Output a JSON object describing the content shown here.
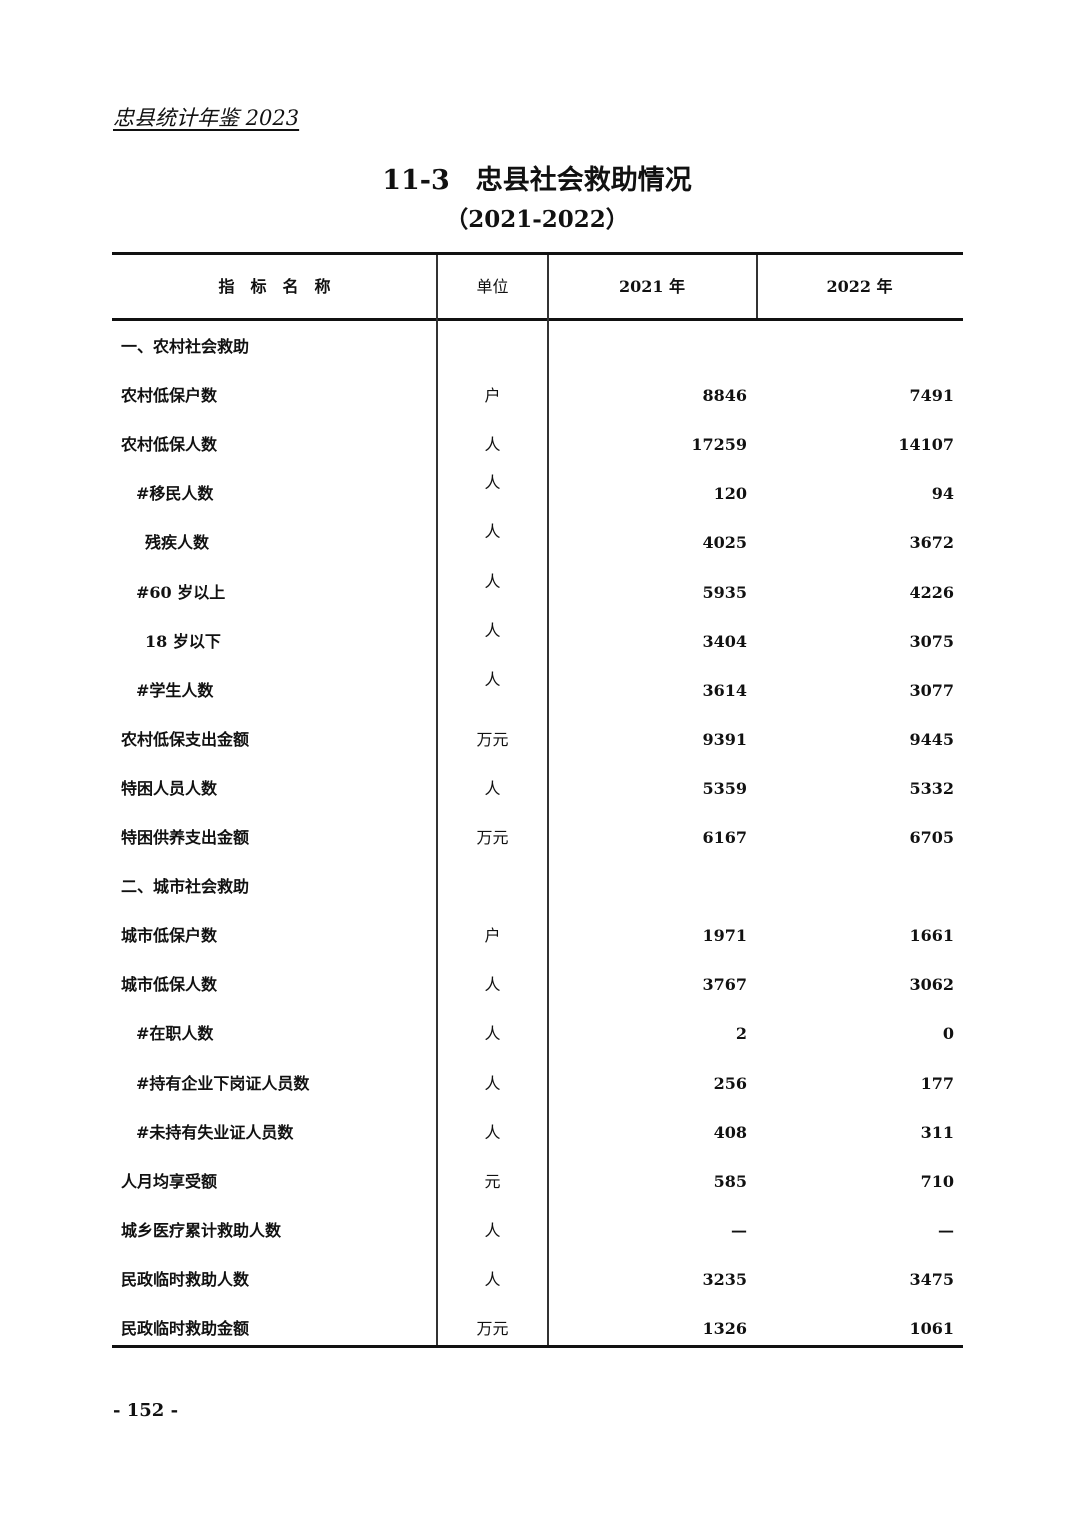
{
  "running_header": "忠县统计年鉴 2023",
  "title": {
    "number": "11-3",
    "text": "忠县社会救助情况"
  },
  "subtitle": "（2021-2022）",
  "columns": [
    "指　标　名　称",
    "单位",
    "2021 年",
    "2022 年"
  ],
  "rows": [
    {
      "name": "一、农村社会救助",
      "unit": "",
      "v2021": "",
      "v2022": "",
      "indent": 0
    },
    {
      "name": "农村低保户数",
      "unit": "户",
      "v2021": "8846",
      "v2022": "7491",
      "indent": 0
    },
    {
      "name": "农村低保人数",
      "unit": "人",
      "v2021": "17259",
      "v2022": "14107",
      "indent": 0
    },
    {
      "name": "#移民人数",
      "unit": "人",
      "v2021": "120",
      "v2022": "94",
      "indent": 1
    },
    {
      "name": "残疾人数",
      "unit": "人",
      "v2021": "4025",
      "v2022": "3672",
      "indent": 2
    },
    {
      "name": "#60 岁以上",
      "unit": "人",
      "v2021": "5935",
      "v2022": "4226",
      "indent": 1
    },
    {
      "name": "18 岁以下",
      "unit": "人",
      "v2021": "3404",
      "v2022": "3075",
      "indent": 2
    },
    {
      "name": "#学生人数",
      "unit": "人",
      "v2021": "3614",
      "v2022": "3077",
      "indent": 1
    },
    {
      "name": "农村低保支出金额",
      "unit": "万元",
      "v2021": "9391",
      "v2022": "9445",
      "indent": 0
    },
    {
      "name": "特困人员人数",
      "unit": "人",
      "v2021": "5359",
      "v2022": "5332",
      "indent": 0
    },
    {
      "name": "特困供养支出金额",
      "unit": "万元",
      "v2021": "6167",
      "v2022": "6705",
      "indent": 0
    },
    {
      "name": "二、城市社会救助",
      "unit": "",
      "v2021": "",
      "v2022": "",
      "indent": 0
    },
    {
      "name": "城市低保户数",
      "unit": "户",
      "v2021": "1971",
      "v2022": "1661",
      "indent": 0
    },
    {
      "name": "城市低保人数",
      "unit": "人",
      "v2021": "3767",
      "v2022": "3062",
      "indent": 0
    },
    {
      "name": "#在职人数",
      "unit": "人",
      "v2021": "2",
      "v2022": "0",
      "indent": 1
    },
    {
      "name": "#持有企业下岗证人员数",
      "unit": "人",
      "v2021": "256",
      "v2022": "177",
      "indent": 1
    },
    {
      "name": "#未持有失业证人员数",
      "unit": "人",
      "v2021": "408",
      "v2022": "311",
      "indent": 1
    },
    {
      "name": "人月均享受额",
      "unit": "元",
      "v2021": "585",
      "v2022": "710",
      "indent": 0
    },
    {
      "name": "城乡医疗累计救助人数",
      "unit": "人",
      "v2021": "—",
      "v2022": "—",
      "indent": 0
    },
    {
      "name": "民政临时救助人数",
      "unit": "人",
      "v2021": "3235",
      "v2022": "3475",
      "indent": 0
    },
    {
      "name": "民政临时救助金额",
      "unit": "万元",
      "v2021": "1326",
      "v2022": "1061",
      "indent": 0
    }
  ],
  "page_number": "- 152 -"
}
